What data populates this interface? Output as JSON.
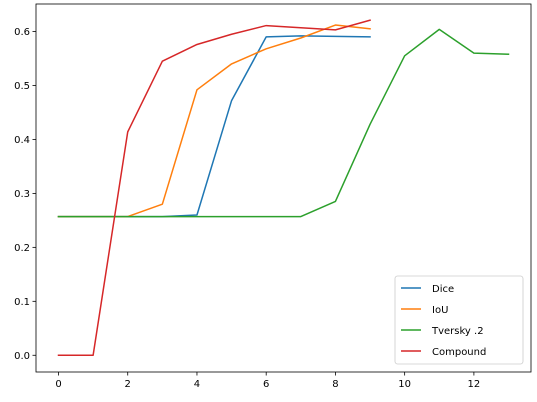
{
  "chart_data": {
    "type": "line",
    "title": "",
    "xlabel": "",
    "ylabel": "",
    "xlim": [
      -0.65,
      13.65
    ],
    "ylim": [
      -0.031,
      0.651
    ],
    "x_ticks": [
      0,
      2,
      4,
      6,
      8,
      10,
      12
    ],
    "x_tick_labels": [
      "0",
      "2",
      "4",
      "6",
      "8",
      "10",
      "12"
    ],
    "y_ticks": [
      0.0,
      0.1,
      0.2,
      0.3,
      0.4,
      0.5,
      0.6
    ],
    "y_tick_labels": [
      "0.0",
      "0.1",
      "0.2",
      "0.3",
      "0.4",
      "0.5",
      "0.6"
    ],
    "grid": false,
    "legend_position": "lower right",
    "series": [
      {
        "name": "Dice",
        "color": "#1f77b4",
        "x": [
          0,
          1,
          2,
          3,
          4,
          5,
          6,
          7,
          8,
          9
        ],
        "values": [
          0.257,
          0.257,
          0.257,
          0.257,
          0.26,
          0.472,
          0.59,
          0.592,
          0.591,
          0.59
        ]
      },
      {
        "name": "IoU",
        "color": "#ff7f0e",
        "x": [
          0,
          1,
          2,
          3,
          4,
          5,
          6,
          7,
          8,
          9
        ],
        "values": [
          0.257,
          0.257,
          0.257,
          0.28,
          0.492,
          0.54,
          0.568,
          0.588,
          0.612,
          0.605
        ]
      },
      {
        "name": "Tversky .2",
        "color": "#2ca02c",
        "x": [
          0,
          1,
          2,
          3,
          4,
          5,
          6,
          7,
          8,
          9,
          10,
          11,
          12,
          13
        ],
        "values": [
          0.257,
          0.257,
          0.257,
          0.257,
          0.257,
          0.257,
          0.257,
          0.257,
          0.285,
          0.428,
          0.555,
          0.604,
          0.56,
          0.558
        ]
      },
      {
        "name": "Compound",
        "color": "#d62728",
        "x": [
          0,
          1,
          2,
          3,
          4,
          5,
          6,
          7,
          8,
          9
        ],
        "values": [
          0.0,
          0.0,
          0.414,
          0.545,
          0.576,
          0.595,
          0.611,
          0.607,
          0.603,
          0.621
        ]
      }
    ]
  }
}
